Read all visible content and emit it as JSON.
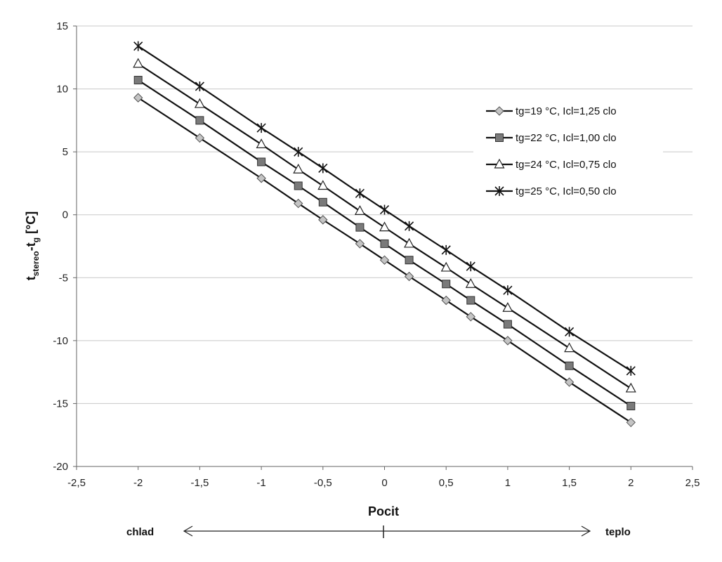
{
  "chart_data": {
    "type": "line",
    "title": "",
    "xlabel": "Pocit",
    "ylabel_main": "t",
    "ylabel_sub1": "stereo",
    "ylabel_mid": "-t",
    "ylabel_sub2": "g",
    "ylabel_unit": " [°C]",
    "xlim": [
      -2.5,
      2.5
    ],
    "ylim": [
      -20,
      15
    ],
    "xticks": [
      -2.5,
      -2,
      -1.5,
      -1,
      -0.5,
      0,
      0.5,
      1,
      1.5,
      2,
      2.5
    ],
    "xtick_labels": [
      "-2,5",
      "-2",
      "-1,5",
      "-1",
      "-0,5",
      "0",
      "0,5",
      "1",
      "1,5",
      "2",
      "2,5"
    ],
    "yticks": [
      15,
      10,
      5,
      0,
      -5,
      -10,
      -15,
      -20
    ],
    "ytick_labels": [
      "15",
      "10",
      "5",
      "0",
      "-5",
      "-10",
      "-15",
      "-20"
    ],
    "grid": "horizontal",
    "legend_position": "right",
    "x": [
      -2,
      -1.5,
      -1,
      -0.7,
      -0.5,
      -0.2,
      0,
      0.2,
      0.5,
      0.7,
      1,
      1.5,
      2
    ],
    "series": [
      {
        "name": "tg=19 °C, Icl=1,25 clo",
        "marker": "diamond",
        "values": [
          9.3,
          6.1,
          2.9,
          0.9,
          -0.4,
          -2.3,
          -3.6,
          -4.9,
          -6.8,
          -8.1,
          -10.0,
          -13.3,
          -16.5
        ]
      },
      {
        "name": "tg=22 °C, Icl=1,00 clo",
        "marker": "square",
        "values": [
          10.7,
          7.5,
          4.2,
          2.3,
          1.0,
          -1.0,
          -2.3,
          -3.6,
          -5.5,
          -6.8,
          -8.7,
          -12.0,
          -15.2
        ]
      },
      {
        "name": "tg=24 °C, Icl=0,75 clo",
        "marker": "triangle",
        "values": [
          12.0,
          8.8,
          5.6,
          3.6,
          2.3,
          0.3,
          -1.0,
          -2.3,
          -4.2,
          -5.5,
          -7.4,
          -10.6,
          -13.8
        ]
      },
      {
        "name": "tg=25 °C, Icl=0,50 clo",
        "marker": "star",
        "values": [
          13.4,
          10.2,
          6.9,
          5.0,
          3.7,
          1.7,
          0.4,
          -0.9,
          -2.8,
          -4.1,
          -6.0,
          -9.3,
          -12.4
        ]
      }
    ],
    "annotations": {
      "left": "chlad",
      "right": "teplo"
    }
  }
}
